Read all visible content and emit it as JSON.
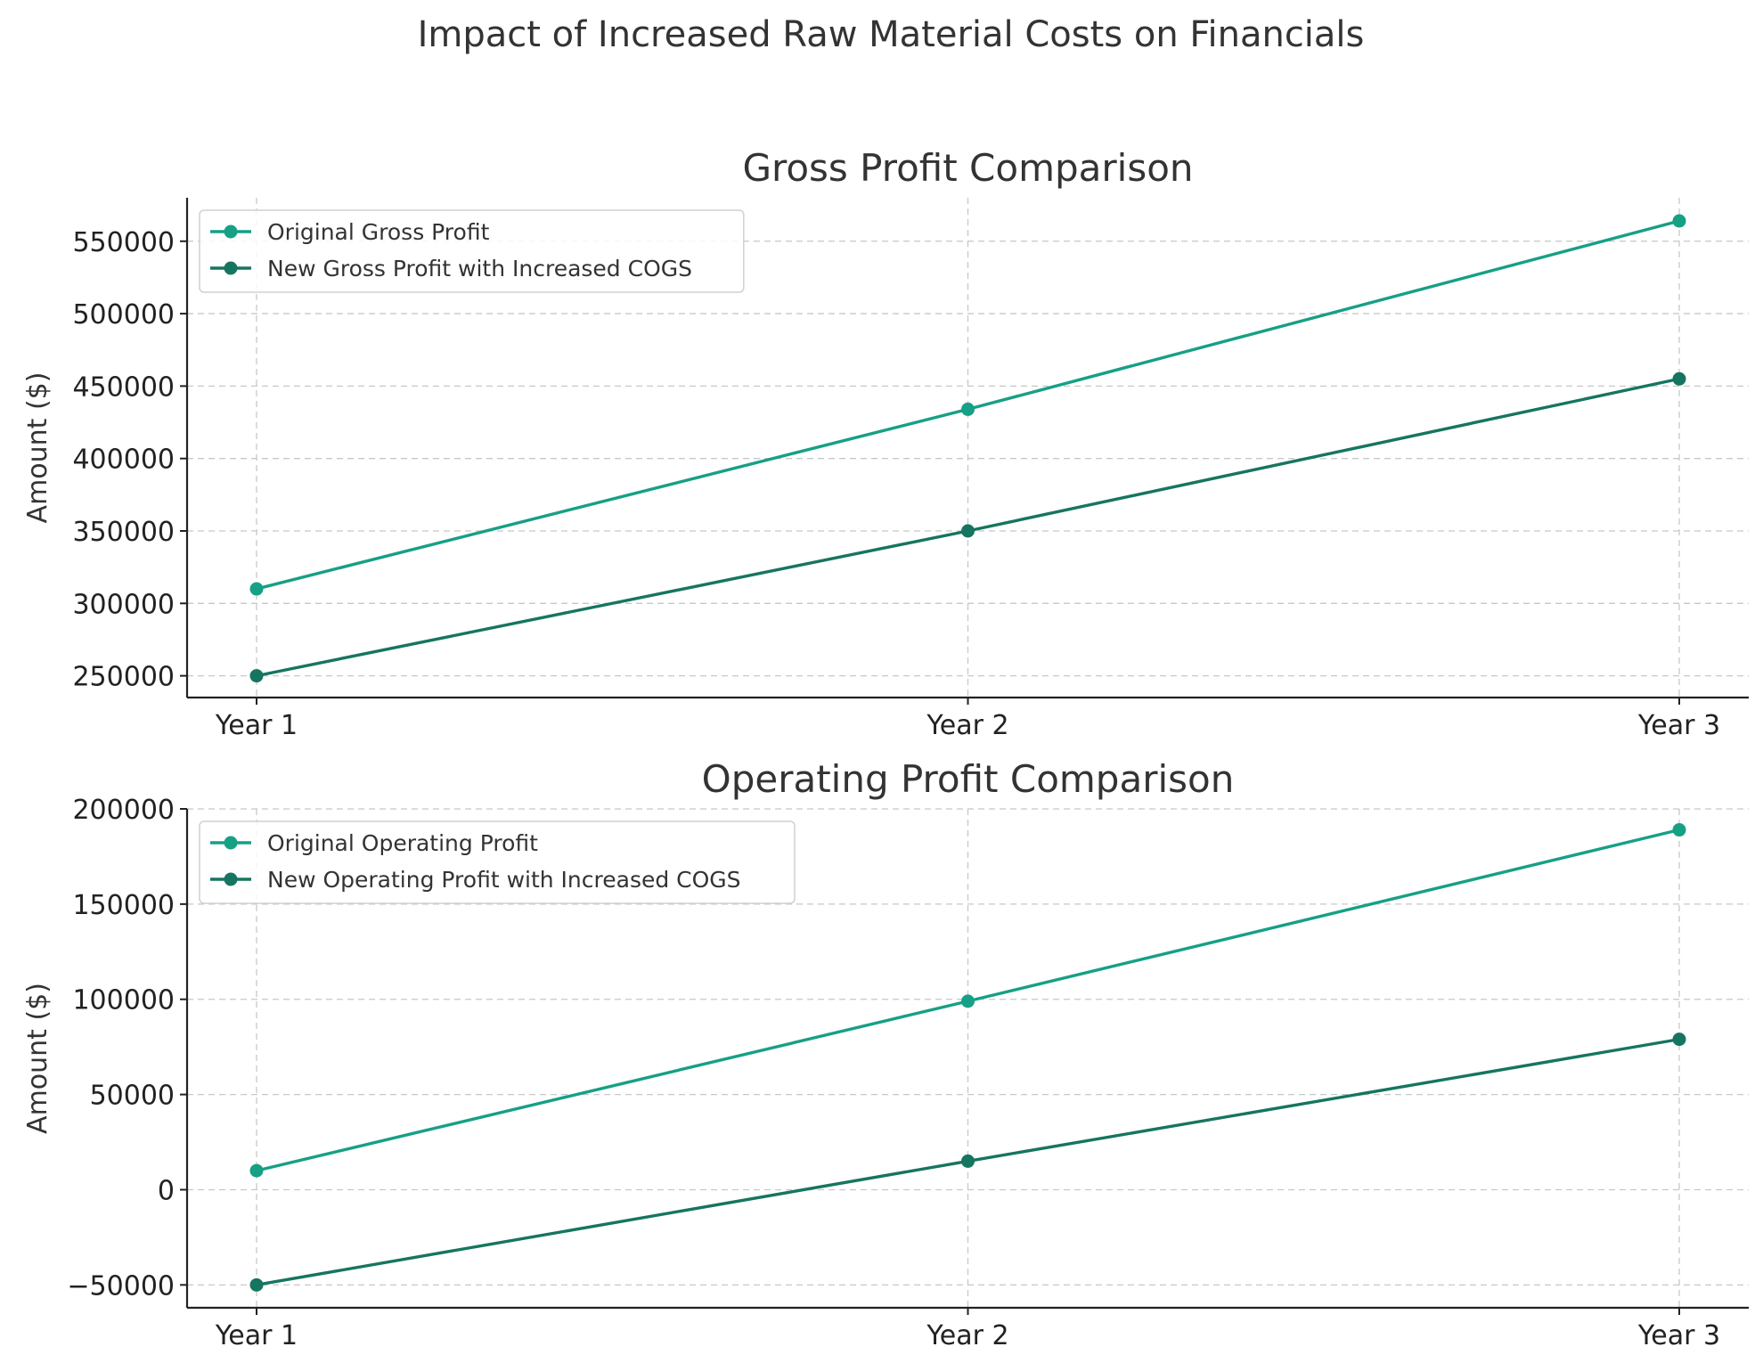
{
  "figure": {
    "title": "Impact of Increased Raw Material Costs on Financials"
  },
  "colors": {
    "original": "#16a085",
    "new": "#167560"
  },
  "chart_data": [
    {
      "type": "line",
      "title": "Gross Profit Comparison",
      "xlabel": "",
      "ylabel": "Amount ($)",
      "categories": [
        "Year 1",
        "Year 2",
        "Year 3"
      ],
      "ylim": [
        235000,
        580000
      ],
      "yticks": [
        250000,
        300000,
        350000,
        400000,
        450000,
        500000,
        550000
      ],
      "ytick_labels": [
        "250000",
        "300000",
        "350000",
        "400000",
        "450000",
        "500000",
        "550000"
      ],
      "grid": true,
      "legend": "top-left",
      "series": [
        {
          "name": "Original Gross Profit",
          "values": [
            310000,
            434000,
            564000
          ]
        },
        {
          "name": "New Gross Profit with Increased COGS",
          "values": [
            250000,
            350000,
            455000
          ]
        }
      ]
    },
    {
      "type": "line",
      "title": "Operating Profit Comparison",
      "xlabel": "",
      "ylabel": "Amount ($)",
      "categories": [
        "Year 1",
        "Year 2",
        "Year 3"
      ],
      "ylim": [
        -62000,
        200000
      ],
      "yticks": [
        -50000,
        0,
        50000,
        100000,
        150000,
        200000
      ],
      "ytick_labels": [
        "−50000",
        "0",
        "50000",
        "100000",
        "150000",
        "200000"
      ],
      "grid": true,
      "legend": "top-left",
      "series": [
        {
          "name": "Original Operating Profit",
          "values": [
            10000,
            99000,
            189000
          ]
        },
        {
          "name": "New Operating Profit with Increased COGS",
          "values": [
            -50000,
            15000,
            79000
          ]
        }
      ]
    }
  ]
}
